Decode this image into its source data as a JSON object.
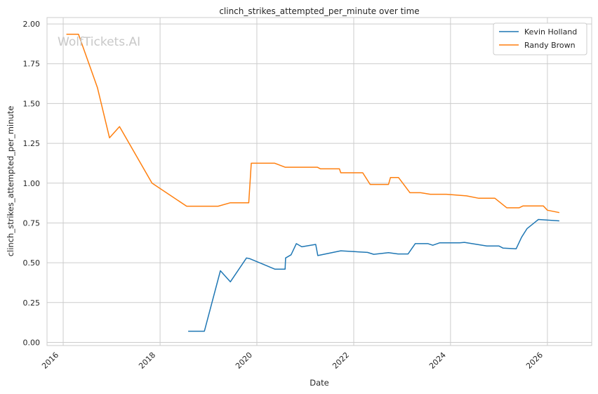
{
  "watermark": "WolfTickets.AI",
  "chart_data": {
    "type": "line",
    "title": "clinch_strikes_attempted_per_minute over time",
    "xlabel": "Date",
    "ylabel": "clinch_strikes_attempted_per_minute",
    "x_ticks": [
      "2016",
      "2018",
      "2020",
      "2022",
      "2024",
      "2026"
    ],
    "y_ticks": [
      "0.00",
      "0.25",
      "0.50",
      "0.75",
      "1.00",
      "1.25",
      "1.50",
      "1.75",
      "2.00"
    ],
    "xlim": [
      "2015-09-01",
      "2026-12-01"
    ],
    "ylim": [
      -0.02,
      2.04
    ],
    "grid": true,
    "legend_position": "top-right",
    "series": [
      {
        "name": "Kevin Holland",
        "color": "#1f77b4",
        "points": [
          [
            "2018-08-01",
            0.07
          ],
          [
            "2018-12-01",
            0.07
          ],
          [
            "2019-04-01",
            0.45
          ],
          [
            "2019-06-15",
            0.38
          ],
          [
            "2019-10-15",
            0.53
          ],
          [
            "2019-11-10",
            0.525
          ],
          [
            "2020-05-15",
            0.46
          ],
          [
            "2020-08-01",
            0.46
          ],
          [
            "2020-08-05",
            0.53
          ],
          [
            "2020-09-15",
            0.55
          ],
          [
            "2020-10-25",
            0.62
          ],
          [
            "2020-12-05",
            0.6
          ],
          [
            "2021-03-20",
            0.615
          ],
          [
            "2021-04-05",
            0.545
          ],
          [
            "2021-09-25",
            0.575
          ],
          [
            "2022-04-15",
            0.565
          ],
          [
            "2022-06-01",
            0.553
          ],
          [
            "2022-09-20",
            0.563
          ],
          [
            "2022-12-01",
            0.555
          ],
          [
            "2023-02-15",
            0.555
          ],
          [
            "2023-04-10",
            0.62
          ],
          [
            "2023-07-15",
            0.62
          ],
          [
            "2023-08-20",
            0.61
          ],
          [
            "2023-10-10",
            0.625
          ],
          [
            "2024-03-10",
            0.625
          ],
          [
            "2024-04-15",
            0.628
          ],
          [
            "2024-10-01",
            0.605
          ],
          [
            "2025-01-01",
            0.605
          ],
          [
            "2025-02-01",
            0.592
          ],
          [
            "2025-05-10",
            0.588
          ],
          [
            "2025-06-20",
            0.66
          ],
          [
            "2025-08-01",
            0.715
          ],
          [
            "2025-10-25",
            0.772
          ],
          [
            "2026-04-01",
            0.763
          ]
        ]
      },
      {
        "name": "Randy Brown",
        "color": "#ff7f0e",
        "points": [
          [
            "2016-01-25",
            1.935
          ],
          [
            "2016-04-25",
            1.935
          ],
          [
            "2016-09-15",
            1.6
          ],
          [
            "2016-12-15",
            1.285
          ],
          [
            "2017-03-01",
            1.355
          ],
          [
            "2017-11-01",
            1.0
          ],
          [
            "2018-07-20",
            0.855
          ],
          [
            "2019-03-15",
            0.855
          ],
          [
            "2019-06-15",
            0.877
          ],
          [
            "2019-11-01",
            0.877
          ],
          [
            "2019-11-20",
            1.125
          ],
          [
            "2020-05-15",
            1.125
          ],
          [
            "2020-08-01",
            1.1
          ],
          [
            "2021-04-01",
            1.1
          ],
          [
            "2021-04-25",
            1.09
          ],
          [
            "2021-09-15",
            1.09
          ],
          [
            "2021-09-25",
            1.065
          ],
          [
            "2022-03-10",
            1.065
          ],
          [
            "2022-05-05",
            0.992
          ],
          [
            "2022-09-20",
            0.992
          ],
          [
            "2022-10-05",
            1.035
          ],
          [
            "2022-12-05",
            1.035
          ],
          [
            "2023-03-01",
            0.94
          ],
          [
            "2023-05-20",
            0.94
          ],
          [
            "2023-08-01",
            0.93
          ],
          [
            "2023-12-01",
            0.93
          ],
          [
            "2024-05-01",
            0.92
          ],
          [
            "2024-08-01",
            0.905
          ],
          [
            "2024-12-01",
            0.905
          ],
          [
            "2025-03-01",
            0.845
          ],
          [
            "2025-06-01",
            0.845
          ],
          [
            "2025-07-01",
            0.857
          ],
          [
            "2025-12-01",
            0.857
          ],
          [
            "2026-01-01",
            0.83
          ],
          [
            "2026-04-01",
            0.815
          ]
        ]
      }
    ]
  }
}
